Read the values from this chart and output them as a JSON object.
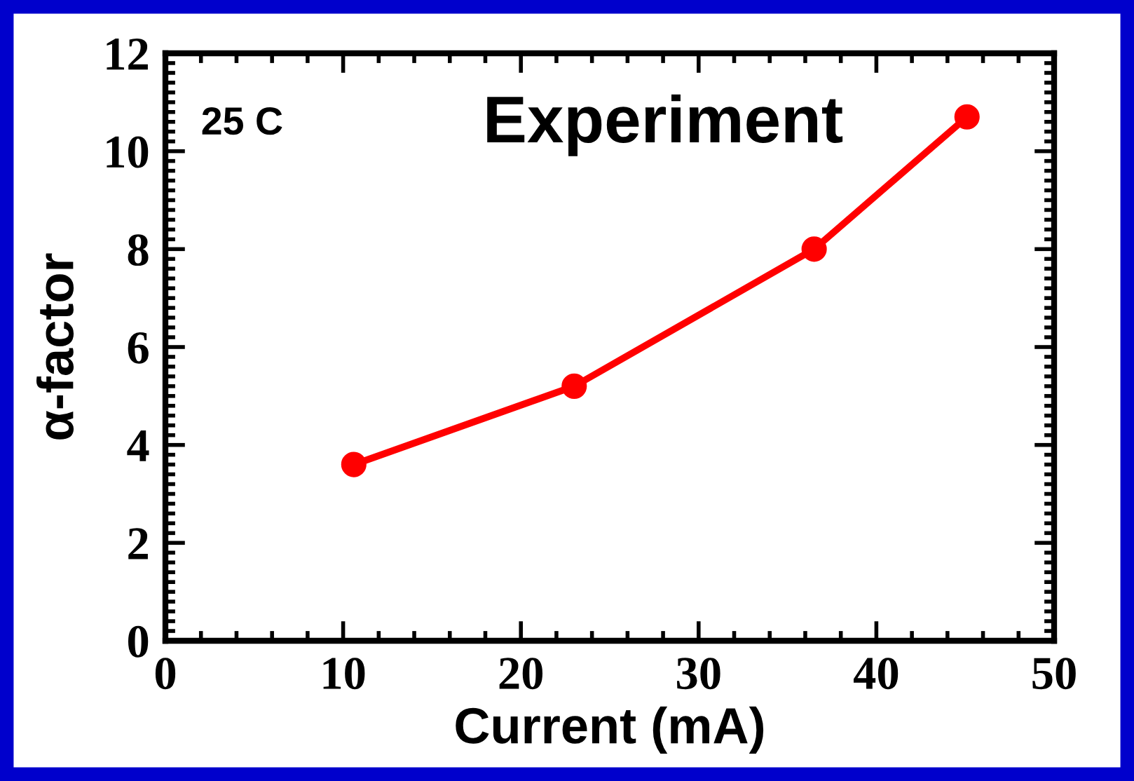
{
  "chart_data": {
    "type": "line",
    "title": "Experiment",
    "xlabel": "Current (mA)",
    "ylabel": "α-factor",
    "annotations": [
      "25 C"
    ],
    "x": [
      10.6,
      23.0,
      36.5,
      45.1
    ],
    "series": [
      {
        "color": "#ff0000",
        "values": [
          3.6,
          5.2,
          8.0,
          10.7
        ]
      }
    ],
    "xlim": [
      0,
      50
    ],
    "xticks": [
      0,
      10,
      20,
      30,
      40,
      50
    ],
    "ylim": [
      0,
      12
    ],
    "yticks": [
      0,
      2,
      4,
      6,
      8,
      10,
      12
    ],
    "marker": "circle",
    "line_style": "solid",
    "grid": false,
    "legend": false
  }
}
